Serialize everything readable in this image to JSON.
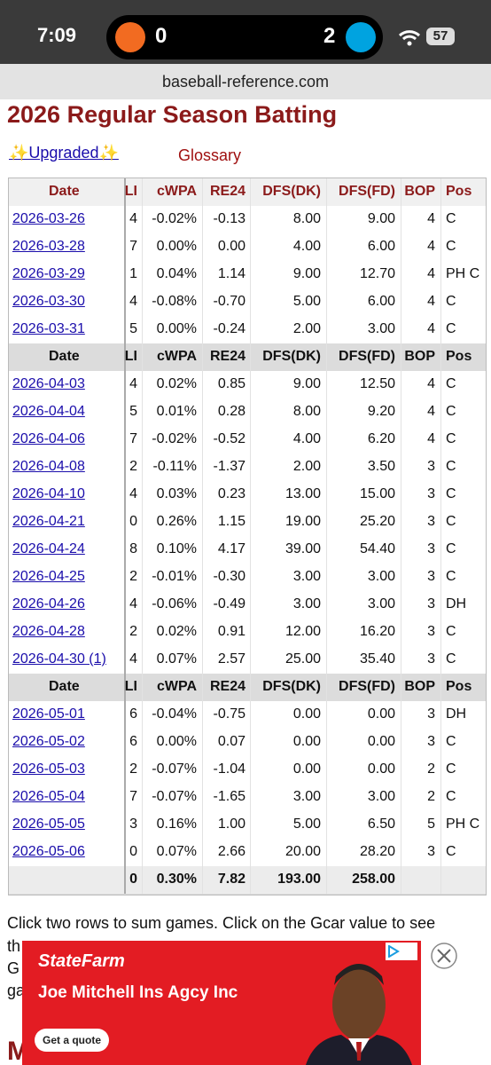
{
  "status_bar": {
    "time": "7:09",
    "away_score": "0",
    "home_score": "2",
    "battery": "57"
  },
  "url": "baseball-reference.com",
  "title": "2026 Regular Season Batting",
  "upgraded": "✨Upgraded✨",
  "glossary": "Glossary",
  "table": {
    "headers": [
      "Date",
      "LI",
      "cWPA",
      "RE24",
      "DFS(DK)",
      "DFS(FD)",
      "BOP",
      "Pos"
    ],
    "groups": [
      {
        "rows": [
          [
            "2026-03-26",
            "4",
            "-0.02%",
            "-0.13",
            "8.00",
            "9.00",
            "4",
            "C"
          ],
          [
            "2026-03-28",
            "7",
            "0.00%",
            "0.00",
            "4.00",
            "6.00",
            "4",
            "C"
          ],
          [
            "2026-03-29",
            "1",
            "0.04%",
            "1.14",
            "9.00",
            "12.70",
            "4",
            "PH C"
          ],
          [
            "2026-03-30",
            "4",
            "-0.08%",
            "-0.70",
            "5.00",
            "6.00",
            "4",
            "C"
          ],
          [
            "2026-03-31",
            "5",
            "0.00%",
            "-0.24",
            "2.00",
            "3.00",
            "4",
            "C"
          ]
        ]
      },
      {
        "rows": [
          [
            "2026-04-03",
            "4",
            "0.02%",
            "0.85",
            "9.00",
            "12.50",
            "4",
            "C"
          ],
          [
            "2026-04-04",
            "5",
            "0.01%",
            "0.28",
            "8.00",
            "9.20",
            "4",
            "C"
          ],
          [
            "2026-04-06",
            "7",
            "-0.02%",
            "-0.52",
            "4.00",
            "6.20",
            "4",
            "C"
          ],
          [
            "2026-04-08",
            "2",
            "-0.11%",
            "-1.37",
            "2.00",
            "3.50",
            "3",
            "C"
          ],
          [
            "2026-04-10",
            "4",
            "0.03%",
            "0.23",
            "13.00",
            "15.00",
            "3",
            "C"
          ],
          [
            "2026-04-21",
            "0",
            "0.26%",
            "1.15",
            "19.00",
            "25.20",
            "3",
            "C"
          ],
          [
            "2026-04-24",
            "8",
            "0.10%",
            "4.17",
            "39.00",
            "54.40",
            "3",
            "C"
          ],
          [
            "2026-04-25",
            "2",
            "-0.01%",
            "-0.30",
            "3.00",
            "3.00",
            "3",
            "C"
          ],
          [
            "2026-04-26",
            "4",
            "-0.06%",
            "-0.49",
            "3.00",
            "3.00",
            "3",
            "DH"
          ],
          [
            "2026-04-28",
            "2",
            "0.02%",
            "0.91",
            "12.00",
            "16.20",
            "3",
            "C"
          ],
          [
            "2026-04-30 (1)",
            "4",
            "0.07%",
            "2.57",
            "25.00",
            "35.40",
            "3",
            "C"
          ]
        ]
      },
      {
        "rows": [
          [
            "2026-05-01",
            "6",
            "-0.04%",
            "-0.75",
            "0.00",
            "0.00",
            "3",
            "DH"
          ],
          [
            "2026-05-02",
            "6",
            "0.00%",
            "0.07",
            "0.00",
            "0.00",
            "3",
            "C"
          ],
          [
            "2026-05-03",
            "2",
            "-0.07%",
            "-1.04",
            "0.00",
            "0.00",
            "2",
            "C"
          ],
          [
            "2026-05-04",
            "7",
            "-0.07%",
            "-1.65",
            "3.00",
            "3.00",
            "2",
            "C"
          ],
          [
            "2026-05-05",
            "3",
            "0.16%",
            "1.00",
            "5.00",
            "6.50",
            "5",
            "PH C"
          ],
          [
            "2026-05-06",
            "0",
            "0.07%",
            "2.66",
            "20.00",
            "28.20",
            "3",
            "C"
          ]
        ]
      }
    ],
    "total": [
      "0",
      "0.30%",
      "7.82",
      "193.00",
      "258.00"
    ]
  },
  "note": {
    "line1": "Click two rows to sum games. Click on the Gcar value to see",
    "line2": "th",
    "line3": "G",
    "line4": "ga",
    "heading": "M"
  },
  "ad": {
    "brand": "StateFarm",
    "advertiser": "Joe Mitchell Ins Agcy Inc",
    "button": "Get a quote"
  }
}
